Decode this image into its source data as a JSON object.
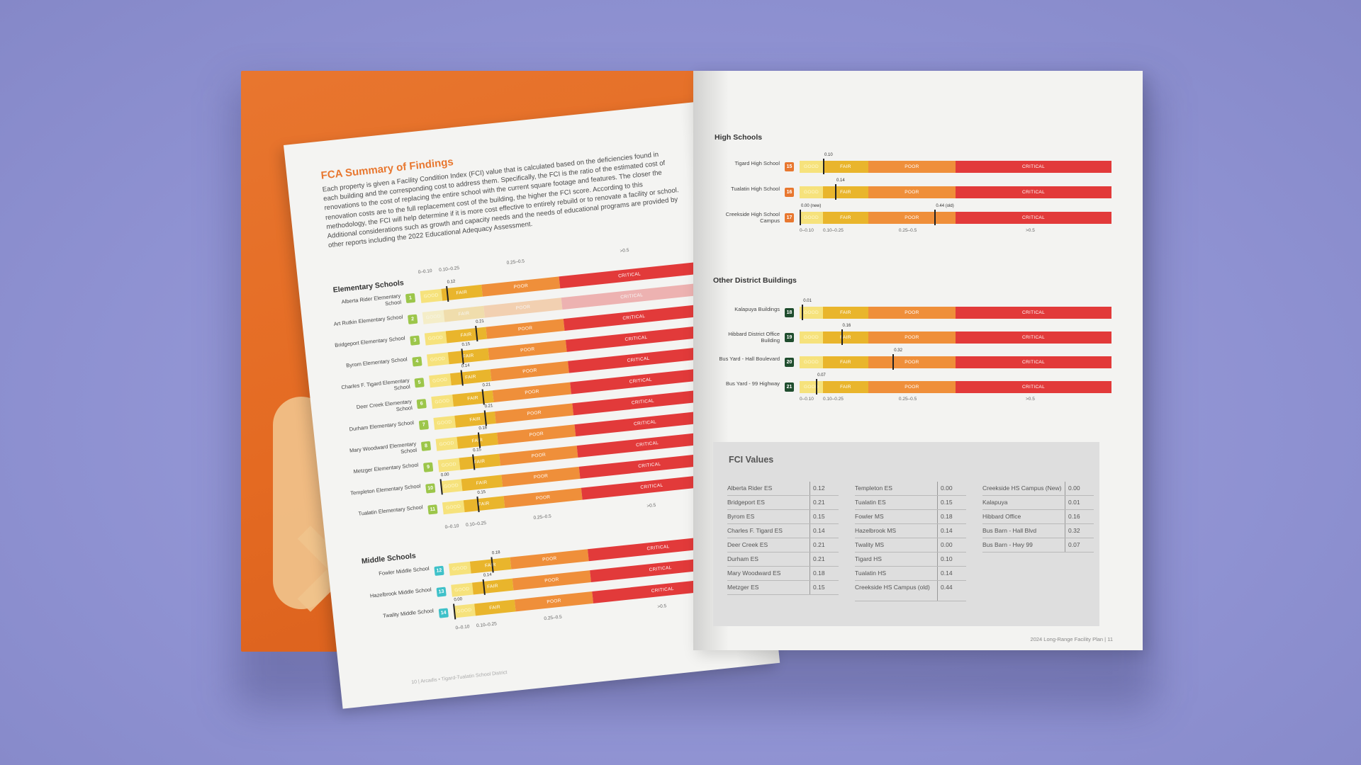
{
  "left_page": {
    "title": "FCA Summary of Findings",
    "body": "Each property is given a Facility Condition Index (FCI) value that is calculated based on the deficiencies found in each building and the corresponding cost to address them. Specifically, the FCI is the ratio of the estimated cost of renovations to the cost of replacing the entire school with the current square footage and features. The closer the renovation costs are to the full replacement cost of the building, the higher the FCI score. According to this methodology, the FCI will help determine if it is more cost effective to entirely rebuild or to renovate a facility or school. Additional considerations such as growth and capacity needs and the needs of educational programs are provided by other reports including the 2022 Educational Adequacy Assessment.",
    "footer": "10 | Arcadis • Tigard-Tualatin School District",
    "scale_labels": {
      "good": "0–0.10",
      "fair": "0.10–0.25",
      "poor": "0.25–0.5",
      "critical": ">0.5"
    },
    "seg_labels": {
      "good": "GOOD",
      "fair": "FAIR",
      "poor": "POOR",
      "critical": "CRITICAL"
    },
    "elementary": {
      "title": "Elementary Schools",
      "schools": [
        {
          "n": "1",
          "name": "Alberta Rider Elementary School",
          "fci": 0.12,
          "label": "0.12"
        },
        {
          "n": "2",
          "name": "Art Rutkin Elementary School",
          "fci": null,
          "label": ""
        },
        {
          "n": "3",
          "name": "Bridgeport Elementary School",
          "fci": 0.21,
          "label": "0.21"
        },
        {
          "n": "4",
          "name": "Byrom Elementary School",
          "fci": 0.15,
          "label": "0.15"
        },
        {
          "n": "5",
          "name": "Charles F. Tigard Elementary School",
          "fci": 0.14,
          "label": "0.14"
        },
        {
          "n": "6",
          "name": "Deer Creek Elementary School",
          "fci": 0.21,
          "label": "0.21"
        },
        {
          "n": "7",
          "name": "Durham Elementary School",
          "fci": 0.21,
          "label": "0.21"
        },
        {
          "n": "8",
          "name": "Mary Woodward Elementary School",
          "fci": 0.18,
          "label": "0.18"
        },
        {
          "n": "9",
          "name": "Metzger Elementary School",
          "fci": 0.15,
          "label": "0.15"
        },
        {
          "n": "10",
          "name": "Templeton Elementary School",
          "fci": 0.0,
          "label": "0.00"
        },
        {
          "n": "11",
          "name": "Tualatin Elementary School",
          "fci": 0.15,
          "label": "0.15"
        }
      ]
    },
    "middle": {
      "title": "Middle Schools",
      "schools": [
        {
          "n": "12",
          "name": "Fowler Middle School",
          "fci": 0.18,
          "label": "0.18"
        },
        {
          "n": "13",
          "name": "Hazelbrook Middle School",
          "fci": 0.14,
          "label": "0.14"
        },
        {
          "n": "14",
          "name": "Twality Middle School",
          "fci": 0.0,
          "label": "0.00"
        }
      ]
    }
  },
  "right_page": {
    "high": {
      "title": "High Schools",
      "schools": [
        {
          "n": "15",
          "name": "Tigard High School",
          "fci": 0.1,
          "label": "0.10"
        },
        {
          "n": "16",
          "name": "Tualatin High School",
          "fci": 0.14,
          "label": "0.14"
        },
        {
          "n": "17",
          "name": "Creekside High School Campus",
          "fci": 0.0,
          "label": "0.00 (new)",
          "fci2": 0.44,
          "label2": "0.44 (old)"
        }
      ]
    },
    "other": {
      "title": "Other District Buildings",
      "schools": [
        {
          "n": "18",
          "name": "Kalapuya Buildings",
          "fci": 0.01,
          "label": "0.01"
        },
        {
          "n": "19",
          "name": "Hibbard District Office Building",
          "fci": 0.16,
          "label": "0.16"
        },
        {
          "n": "20",
          "name": "Bus Yard - Hall Boulevard",
          "fci": 0.32,
          "label": "0.32"
        },
        {
          "n": "21",
          "name": "Bus Yard - 99 Highway",
          "fci": 0.07,
          "label": "0.07"
        }
      ]
    },
    "scale_labels": {
      "good": "0–0.10",
      "fair": "0.10–0.25",
      "poor": "0.25–0.5",
      "critical": ">0.5"
    },
    "fci_table": {
      "title": "FCI Values",
      "columns": [
        [
          {
            "name": "Alberta Rider ES",
            "value": "0.12"
          },
          {
            "name": "Bridgeport ES",
            "value": "0.21"
          },
          {
            "name": "Byrom ES",
            "value": "0.15"
          },
          {
            "name": "Charles F. Tigard ES",
            "value": "0.14"
          },
          {
            "name": "Deer Creek ES",
            "value": "0.21"
          },
          {
            "name": "Durham ES",
            "value": "0.21"
          },
          {
            "name": "Mary Woodward ES",
            "value": "0.18"
          },
          {
            "name": "Metzger ES",
            "value": "0.15"
          }
        ],
        [
          {
            "name": "Templeton ES",
            "value": "0.00"
          },
          {
            "name": "Tualatin ES",
            "value": "0.15"
          },
          {
            "name": "Fowler MS",
            "value": "0.18"
          },
          {
            "name": "Hazelbrook MS",
            "value": "0.14"
          },
          {
            "name": "Twality MS",
            "value": "0.00"
          },
          {
            "name": "Tigard HS",
            "value": "0.10"
          },
          {
            "name": "Tualatin HS",
            "value": "0.14"
          },
          {
            "name": "Creekside HS Campus (old)",
            "value": "0.44"
          }
        ],
        [
          {
            "name": "Creekside HS Campus (New)",
            "value": "0.00"
          },
          {
            "name": "Kalapuya",
            "value": "0.01"
          },
          {
            "name": "Hibbard Office",
            "value": "0.16"
          },
          {
            "name": "Bus Barn - Hall Blvd",
            "value": "0.32"
          },
          {
            "name": "Bus Barn - Hwy 99",
            "value": "0.07"
          }
        ]
      ]
    },
    "footer": "2024 Long-Range Facility Plan | 11"
  },
  "colors": {
    "good": "#f6e27c",
    "fair": "#e9b52c",
    "poor": "#ef8f3a",
    "critical": "#e23a3a",
    "badge_elementary": "#9cc64a",
    "badge_middle": "#3fc1c9",
    "badge_high": "#e8772f",
    "badge_other": "#1f4d2e",
    "accent": "#e8772f"
  }
}
